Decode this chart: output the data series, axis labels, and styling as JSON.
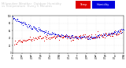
{
  "title_line1": "Milwaukee Weather  Outdoor Humidity",
  "title_line2": "vs Temperature",
  "title_line3": "Every 5 Minutes",
  "legend_temp_label": "Temp",
  "legend_humidity_label": "Humidity",
  "humidity_color": "#0000dd",
  "temp_color": "#dd0000",
  "bg_color": "#ffffff",
  "title_bg_color": "#222222",
  "title_text_color": "#cccccc",
  "grid_color": "#aaaaaa",
  "legend_temp_color": "#dd0000",
  "legend_humidity_color": "#0000dd",
  "title_fontsize": 2.8,
  "tick_fontsize": 1.8,
  "ylim": [
    0,
    100
  ],
  "xlim": [
    0,
    288
  ],
  "y_ticks": [
    0,
    20,
    40,
    60,
    80,
    100
  ],
  "dot_size": 0.5
}
